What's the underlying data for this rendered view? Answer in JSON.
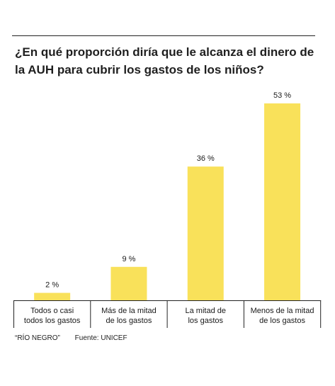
{
  "title": "¿En qué proporción diría que le alcanza el dinero de la AUH para cubrir los gastos de los niños?",
  "footer": {
    "brand": "“RÍO NEGRO”",
    "source": "Fuente: UNICEF"
  },
  "colors": {
    "bar": "#f9e15a",
    "axis": "#222222",
    "text": "#1a1a1a"
  },
  "chart_data": {
    "type": "bar",
    "title": "¿En qué proporción diría que le alcanza el dinero de la AUH para cubrir los gastos de los niños?",
    "categories": [
      [
        "Todos o casi",
        "todos los gastos"
      ],
      [
        "Más de la mitad",
        "de los gastos"
      ],
      [
        "La mitad de",
        "los gastos"
      ],
      [
        "Menos de la mitad",
        "de los gastos"
      ]
    ],
    "values": [
      2,
      9,
      36,
      53
    ],
    "data_labels": [
      "2 %",
      "9 %",
      "36 %",
      "53 %"
    ],
    "unit": "%",
    "ylim": [
      0,
      53
    ],
    "grid": false,
    "legend": "none"
  }
}
